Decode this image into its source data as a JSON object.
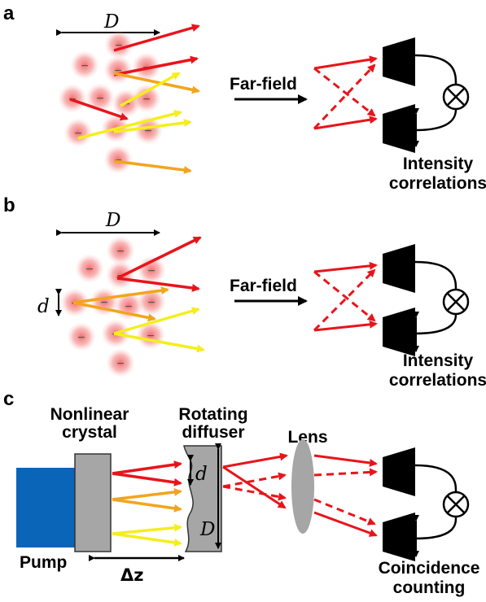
{
  "panels": {
    "a": {
      "letter": "a",
      "width_symbol": "D",
      "far_field_label": "Far-field",
      "detection_label_line1": "Intensity",
      "detection_label_line2": "correlations",
      "particle_glyph": "−"
    },
    "b": {
      "letter": "b",
      "width_symbol": "D",
      "separation_symbol": "d",
      "far_field_label": "Far-field",
      "detection_label_line1": "Intensity",
      "detection_label_line2": "correlations",
      "particle_glyph": "−"
    },
    "c": {
      "letter": "c",
      "crystal_label_line1": "Nonlinear",
      "crystal_label_line2": "crystal",
      "diffuser_label_line1": "Rotating",
      "diffuser_label_line2": "diffuser",
      "lens_label": "Lens",
      "pump_label": "Pump",
      "distance_label": "Δz",
      "diffuser_small_symbol": "d",
      "diffuser_large_symbol": "D",
      "detection_label_line1": "Coincidence",
      "detection_label_line2": "counting"
    }
  },
  "colors": {
    "red_beam": "#e8141b",
    "orange_beam": "#f2a51c",
    "yellow_beam": "#f4ee1c",
    "pump": "#0a64b8",
    "crystal": "#a6a6a6",
    "lens": "#a6a6a6",
    "particle_glow": "#f08080",
    "detector": "#000000"
  },
  "icons": {
    "detector": "detector-cone-icon",
    "correlator": "multiplier-circle-icon"
  }
}
